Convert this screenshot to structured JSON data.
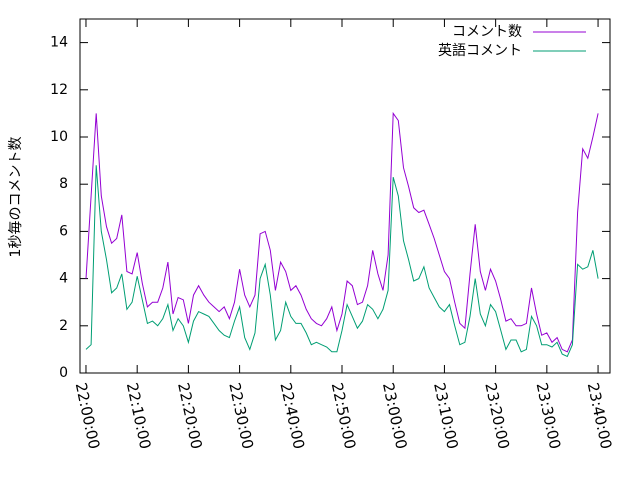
{
  "chart_data": {
    "type": "line",
    "ylabel": "1秒毎のコメント数",
    "x": [
      "22:00:00",
      "22:01:00",
      "22:02:00",
      "22:03:00",
      "22:04:00",
      "22:05:00",
      "22:06:00",
      "22:07:00",
      "22:08:00",
      "22:09:00",
      "22:10:00",
      "22:11:00",
      "22:12:00",
      "22:13:00",
      "22:14:00",
      "22:15:00",
      "22:16:00",
      "22:17:00",
      "22:18:00",
      "22:19:00",
      "22:20:00",
      "22:21:00",
      "22:22:00",
      "22:23:00",
      "22:24:00",
      "22:25:00",
      "22:26:00",
      "22:27:00",
      "22:28:00",
      "22:29:00",
      "22:30:00",
      "22:31:00",
      "22:32:00",
      "22:33:00",
      "22:34:00",
      "22:35:00",
      "22:36:00",
      "22:37:00",
      "22:38:00",
      "22:39:00",
      "22:40:00",
      "22:41:00",
      "22:42:00",
      "22:43:00",
      "22:44:00",
      "22:45:00",
      "22:46:00",
      "22:47:00",
      "22:48:00",
      "22:49:00",
      "22:50:00",
      "22:51:00",
      "22:52:00",
      "22:53:00",
      "22:54:00",
      "22:55:00",
      "22:56:00",
      "22:57:00",
      "22:58:00",
      "22:59:00",
      "23:00:00",
      "23:01:00",
      "23:02:00",
      "23:03:00",
      "23:04:00",
      "23:05:00",
      "23:06:00",
      "23:07:00",
      "23:08:00",
      "23:09:00",
      "23:10:00",
      "23:11:00",
      "23:12:00",
      "23:13:00",
      "23:14:00",
      "23:15:00",
      "23:16:00",
      "23:17:00",
      "23:18:00",
      "23:19:00",
      "23:20:00",
      "23:21:00",
      "23:22:00",
      "23:23:00",
      "23:24:00",
      "23:25:00",
      "23:26:00",
      "23:27:00",
      "23:28:00",
      "23:29:00",
      "23:30:00",
      "23:31:00",
      "23:32:00",
      "23:33:00",
      "23:34:00",
      "23:35:00",
      "23:36:00",
      "23:37:00",
      "23:38:00",
      "23:39:00",
      "23:40:00"
    ],
    "series": [
      {
        "name": "コメント数",
        "color": "#9400d3",
        "values": [
          4.0,
          7.5,
          11.0,
          7.5,
          6.2,
          5.5,
          5.7,
          6.7,
          4.3,
          4.2,
          5.1,
          3.8,
          2.8,
          3.0,
          3.0,
          3.6,
          4.7,
          2.5,
          3.2,
          3.1,
          2.1,
          3.3,
          3.7,
          3.3,
          3.0,
          2.8,
          2.6,
          2.8,
          2.3,
          3.0,
          4.4,
          3.3,
          2.8,
          3.3,
          5.9,
          6.0,
          5.2,
          3.5,
          4.7,
          4.3,
          3.5,
          3.7,
          3.3,
          2.7,
          2.3,
          2.1,
          2.0,
          2.3,
          2.8,
          1.8,
          2.5,
          3.9,
          3.7,
          2.9,
          3.0,
          3.7,
          5.2,
          4.2,
          3.5,
          5.0,
          11.0,
          10.7,
          8.7,
          7.9,
          7.0,
          6.8,
          6.9,
          6.3,
          5.7,
          5.0,
          4.3,
          4.0,
          3.0,
          2.1,
          1.9,
          4.2,
          6.3,
          4.3,
          3.5,
          4.4,
          3.9,
          3.1,
          2.2,
          2.3,
          2.0,
          2.0,
          2.1,
          3.6,
          2.5,
          1.6,
          1.7,
          1.3,
          1.5,
          1.0,
          0.9,
          1.4,
          6.8,
          9.5,
          9.1,
          10.0,
          11.0
        ]
      },
      {
        "name": "英語コメント",
        "color": "#009e73",
        "values": [
          1.0,
          1.2,
          8.8,
          6.0,
          4.8,
          3.4,
          3.6,
          4.2,
          2.7,
          3.0,
          4.1,
          3.1,
          2.1,
          2.2,
          2.0,
          2.3,
          2.9,
          1.8,
          2.3,
          2.0,
          1.3,
          2.2,
          2.6,
          2.5,
          2.4,
          2.1,
          1.8,
          1.6,
          1.5,
          2.2,
          2.8,
          1.5,
          1.0,
          1.7,
          4.0,
          4.6,
          3.3,
          1.4,
          1.8,
          3.0,
          2.4,
          2.1,
          2.1,
          1.7,
          1.2,
          1.3,
          1.2,
          1.1,
          0.9,
          0.9,
          1.8,
          2.9,
          2.4,
          1.9,
          2.2,
          2.9,
          2.7,
          2.3,
          2.7,
          3.5,
          8.3,
          7.5,
          5.6,
          4.8,
          3.9,
          4.0,
          4.5,
          3.6,
          3.2,
          2.8,
          2.6,
          2.9,
          2.0,
          1.2,
          1.3,
          2.4,
          4.0,
          2.5,
          2.0,
          2.9,
          2.6,
          1.8,
          1.0,
          1.4,
          1.4,
          0.9,
          1.0,
          2.4,
          2.0,
          1.2,
          1.2,
          1.1,
          1.3,
          0.8,
          0.7,
          1.2,
          4.6,
          4.4,
          4.5,
          5.2,
          4.0
        ]
      }
    ],
    "xlim": [
      "21:58:50",
      "23:42:20"
    ],
    "xticks": [
      "22:00:00",
      "22:10:00",
      "22:20:00",
      "22:30:00",
      "22:40:00",
      "22:50:00",
      "23:00:00",
      "23:10:00",
      "23:20:00",
      "23:30:00",
      "23:40:00"
    ],
    "ylim": [
      0,
      15
    ],
    "yticks": [
      0,
      2,
      4,
      6,
      8,
      10,
      12,
      14
    ],
    "legend": "top-right",
    "grid": false
  }
}
